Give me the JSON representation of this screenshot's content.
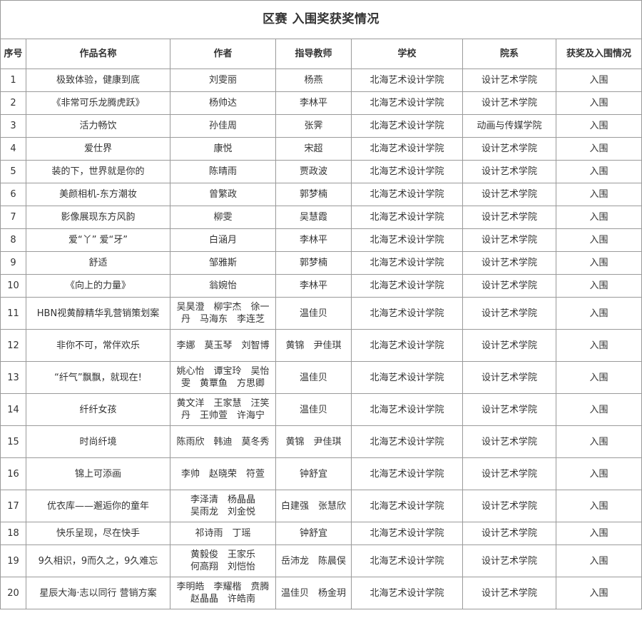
{
  "title": "区赛 入围奖获奖情况",
  "columns": [
    "序号",
    "作品名称",
    "作者",
    "指导教师",
    "学校",
    "院系",
    "获奖及入围情况"
  ],
  "rows": [
    {
      "no": "1",
      "work": "极致体验，健康到底",
      "author": "刘雯丽",
      "teacher": "杨燕",
      "school": "北海艺术设计学院",
      "dept": "设计艺术学院",
      "award": "入围"
    },
    {
      "no": "2",
      "work": "《非常可乐龙腾虎跃》",
      "author": "杨帅达",
      "teacher": "李林平",
      "school": "北海艺术设计学院",
      "dept": "设计艺术学院",
      "award": "入围"
    },
    {
      "no": "3",
      "work": "活力畅饮",
      "author": "孙佳周",
      "teacher": "张霁",
      "school": "北海艺术设计学院",
      "dept": "动画与传媒学院",
      "award": "入围"
    },
    {
      "no": "4",
      "work": "爱仕界",
      "author": "康悦",
      "teacher": "宋超",
      "school": "北海艺术设计学院",
      "dept": "设计艺术学院",
      "award": "入围"
    },
    {
      "no": "5",
      "work": "装的下，世界就是你的",
      "author": "陈晴雨",
      "teacher": "贾政波",
      "school": "北海艺术设计学院",
      "dept": "设计艺术学院",
      "award": "入围"
    },
    {
      "no": "6",
      "work": "美颜相机-东方潮妆",
      "author": "曾繁政",
      "teacher": "郭梦楠",
      "school": "北海艺术设计学院",
      "dept": "设计艺术学院",
      "award": "入围"
    },
    {
      "no": "7",
      "work": "影像展现东方风韵",
      "author": "柳雯",
      "teacher": "吴慧霞",
      "school": "北海艺术设计学院",
      "dept": "设计艺术学院",
      "award": "入围"
    },
    {
      "no": "8",
      "work": "爱“丫” 爱“牙”",
      "author": "白涵月",
      "teacher": "李林平",
      "school": "北海艺术设计学院",
      "dept": "设计艺术学院",
      "award": "入围"
    },
    {
      "no": "9",
      "work": "舒适",
      "author": "邹雅斯",
      "teacher": "郭梦楠",
      "school": "北海艺术设计学院",
      "dept": "设计艺术学院",
      "award": "入围"
    },
    {
      "no": "10",
      "work": "《向上的力量》",
      "author": "翁婉怡",
      "teacher": "李林平",
      "school": "北海艺术设计学院",
      "dept": "设计艺术学院",
      "award": "入围"
    },
    {
      "no": "11",
      "work": "HBN视黄醇精华乳营销策划案",
      "author": "吴昊澄　柳宇杰　徐一\n丹　马海东　李连芝",
      "teacher": "温佳贝",
      "school": "北海艺术设计学院",
      "dept": "设计艺术学院",
      "award": "入围"
    },
    {
      "no": "12",
      "work": "非你不可，常伴欢乐",
      "author": "李娜　莫玉琴　刘智博",
      "teacher": "黄锦　尹佳琪",
      "school": "北海艺术设计学院",
      "dept": "设计艺术学院",
      "award": "入围"
    },
    {
      "no": "13",
      "work": "“纤气”飘飘，就现在!",
      "author": "姚心怡　谭宝玲　吴怡\n雯　黄覃鱼　方思卿",
      "teacher": "温佳贝",
      "school": "北海艺术设计学院",
      "dept": "设计艺术学院",
      "award": "入围"
    },
    {
      "no": "14",
      "work": "纤纤女孩",
      "author": "黄文洋　王家慧　汪笑\n丹　王帅萱　许海宁",
      "teacher": "温佳贝",
      "school": "北海艺术设计学院",
      "dept": "设计艺术学院",
      "award": "入围"
    },
    {
      "no": "15",
      "work": "时尚纤境",
      "author": "陈雨欣　韩迪　莫冬秀",
      "teacher": "黄锦　尹佳琪",
      "school": "北海艺术设计学院",
      "dept": "设计艺术学院",
      "award": "入围"
    },
    {
      "no": "16",
      "work": "锦上可添画",
      "author": "李帅　赵晓荣　符萱",
      "teacher": "钟舒宜",
      "school": "北海艺术设计学院",
      "dept": "设计艺术学院",
      "award": "入围"
    },
    {
      "no": "17",
      "work": "优衣库——邂逅你的童年",
      "author": "李泽清　杨晶晶\n吴雨龙　刘金悦",
      "teacher": "白建强　张慧欣",
      "school": "北海艺术设计学院",
      "dept": "设计艺术学院",
      "award": "入围"
    },
    {
      "no": "18",
      "work": "快乐呈现，尽在快手",
      "author": "祁诗雨　丁瑶",
      "teacher": "钟舒宜",
      "school": "北海艺术设计学院",
      "dept": "设计艺术学院",
      "award": "入围"
    },
    {
      "no": "19",
      "work": "9久相识，9而久之，9久难忘",
      "author": "黄毅俊　王家乐\n何高翔　刘恺怡",
      "teacher": "岳沛龙　陈晨俣",
      "school": "北海艺术设计学院",
      "dept": "设计艺术学院",
      "award": "入围"
    },
    {
      "no": "20",
      "work": "星辰大海·志以同行 营销方案",
      "author": "李明皓　李耀楷　贲腾\n赵晶晶　许皓南",
      "teacher": "温佳贝　杨金玥",
      "school": "北海艺术设计学院",
      "dept": "设计艺术学院",
      "award": "入围"
    }
  ]
}
